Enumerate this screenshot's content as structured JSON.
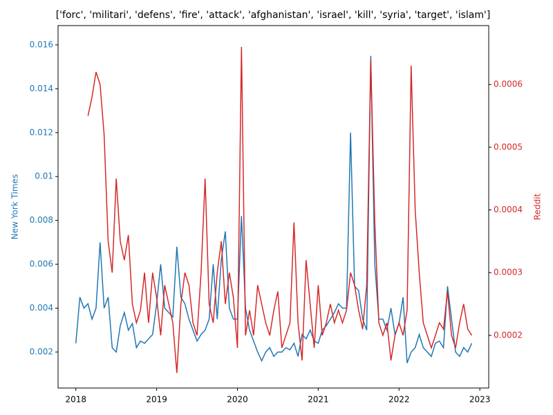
{
  "chart_data": {
    "type": "line",
    "title": "['forc', 'militari', 'defens', 'fire', 'attack', 'afghanistan', 'israel', 'kill', 'syria', 'target', 'islam']",
    "ylabel": "New York Times",
    "y2label": "Reddit",
    "x": [
      2018.0,
      2018.05,
      2018.1,
      2018.15,
      2018.2,
      2018.25,
      2018.3,
      2018.35,
      2018.4,
      2018.45,
      2018.5,
      2018.55,
      2018.6,
      2018.65,
      2018.7,
      2018.75,
      2018.8,
      2018.85,
      2018.9,
      2018.95,
      2019.0,
      2019.05,
      2019.1,
      2019.15,
      2019.2,
      2019.25,
      2019.3,
      2019.35,
      2019.4,
      2019.45,
      2019.5,
      2019.55,
      2019.6,
      2019.65,
      2019.7,
      2019.75,
      2019.8,
      2019.85,
      2019.9,
      2019.95,
      2020.0,
      2020.05,
      2020.1,
      2020.15,
      2020.2,
      2020.25,
      2020.3,
      2020.35,
      2020.4,
      2020.45,
      2020.5,
      2020.55,
      2020.6,
      2020.65,
      2020.7,
      2020.75,
      2020.8,
      2020.85,
      2020.9,
      2020.95,
      2021.0,
      2021.05,
      2021.1,
      2021.15,
      2021.2,
      2021.25,
      2021.3,
      2021.35,
      2021.4,
      2021.45,
      2021.5,
      2021.55,
      2021.6,
      2021.65,
      2021.7,
      2021.75,
      2021.8,
      2021.85,
      2021.9,
      2021.95,
      2022.0,
      2022.05,
      2022.1,
      2022.15,
      2022.2,
      2022.25,
      2022.3,
      2022.35,
      2022.4,
      2022.45,
      2022.5,
      2022.55,
      2022.6,
      2022.65,
      2022.7,
      2022.75,
      2022.8,
      2022.85,
      2022.9
    ],
    "series": [
      {
        "name": "New York Times",
        "color": "#1f77b4",
        "axis": "y",
        "values": [
          0.0024,
          0.0045,
          0.004,
          0.0042,
          0.0035,
          0.004,
          0.007,
          0.004,
          0.0045,
          0.0022,
          0.002,
          0.0032,
          0.0038,
          0.003,
          0.0033,
          0.0022,
          0.0025,
          0.0024,
          0.0026,
          0.0028,
          0.0042,
          0.006,
          0.004,
          0.0038,
          0.0036,
          0.0068,
          0.0045,
          0.0042,
          0.0035,
          0.003,
          0.0025,
          0.0028,
          0.003,
          0.0035,
          0.006,
          0.0035,
          0.0062,
          0.0075,
          0.004,
          0.0035,
          0.0035,
          0.0082,
          0.004,
          0.003,
          0.0025,
          0.002,
          0.0016,
          0.002,
          0.0022,
          0.0018,
          0.002,
          0.002,
          0.0022,
          0.0021,
          0.0024,
          0.0018,
          0.0028,
          0.0026,
          0.003,
          0.0025,
          0.0024,
          0.003,
          0.0032,
          0.0035,
          0.0038,
          0.0042,
          0.004,
          0.004,
          0.012,
          0.005,
          0.0048,
          0.0035,
          0.003,
          0.0155,
          0.006,
          0.0035,
          0.0035,
          0.003,
          0.004,
          0.0028,
          0.0033,
          0.0045,
          0.0015,
          0.002,
          0.0022,
          0.0028,
          0.0022,
          0.002,
          0.0018,
          0.0024,
          0.0025,
          0.0022,
          0.005,
          0.0035,
          0.002,
          0.0018,
          0.0022,
          0.002,
          0.0024
        ]
      },
      {
        "name": "Reddit",
        "color": "#d62728",
        "axis": "y2",
        "values": [
          null,
          null,
          null,
          0.00055,
          0.00058,
          0.00062,
          0.0006,
          0.00052,
          0.00035,
          0.0003,
          0.00045,
          0.00035,
          0.00032,
          0.00036,
          0.00025,
          0.00022,
          0.00024,
          0.0003,
          0.00022,
          0.0003,
          0.00026,
          0.0002,
          0.00028,
          0.00025,
          0.00022,
          0.00014,
          0.00025,
          0.0003,
          0.00028,
          0.00022,
          0.0002,
          0.0003,
          0.00045,
          0.00025,
          0.00022,
          0.0003,
          0.00035,
          0.00025,
          0.0003,
          0.00026,
          0.00018,
          0.00066,
          0.0002,
          0.00024,
          0.0002,
          0.00028,
          0.00025,
          0.00022,
          0.0002,
          0.00024,
          0.00027,
          0.00018,
          0.0002,
          0.00022,
          0.00038,
          0.00022,
          0.00016,
          0.00032,
          0.00025,
          0.00018,
          0.00028,
          0.0002,
          0.00022,
          0.00025,
          0.00022,
          0.00024,
          0.00022,
          0.00024,
          0.0003,
          0.00028,
          0.00024,
          0.00021,
          0.00028,
          0.00064,
          0.00038,
          0.00022,
          0.0002,
          0.00022,
          0.00016,
          0.0002,
          0.00022,
          0.0002,
          0.00024,
          0.00063,
          0.0004,
          0.0003,
          0.00022,
          0.0002,
          0.00018,
          0.0002,
          0.00022,
          0.00021,
          0.00027,
          0.0002,
          0.00018,
          0.00022,
          0.00025,
          0.00021,
          0.0002
        ]
      }
    ],
    "xlim": [
      2017.78,
      2023.11
    ],
    "xticks": [
      2018,
      2019,
      2020,
      2021,
      2022,
      2023
    ],
    "ylim": [
      0.00036,
      0.01688
    ],
    "yticks": [
      0.002,
      0.004,
      0.006,
      0.008,
      0.01,
      0.012,
      0.014,
      0.016
    ],
    "y2lim": [
      0.000116,
      0.000694
    ],
    "y2ticks": [
      0.0002,
      0.0003,
      0.0004,
      0.0005,
      0.0006
    ]
  }
}
